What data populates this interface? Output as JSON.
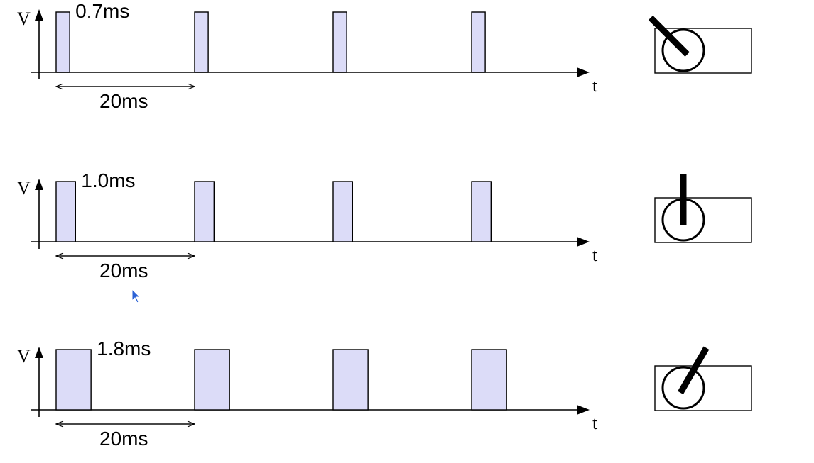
{
  "colors": {
    "pulse_fill": "#dcdcf8",
    "stroke": "#000000",
    "cursor": "#2b62d6"
  },
  "axis_labels": {
    "voltage": "V",
    "time": "t"
  },
  "rows": [
    {
      "pulse_width_label": "0.7ms",
      "period_label": "20ms",
      "pulse_width_ms": 0.7,
      "period_ms": 20,
      "pulse_count": 4,
      "servo_angle_deg": -45
    },
    {
      "pulse_width_label": "1.0ms",
      "period_label": "20ms",
      "pulse_width_ms": 1.0,
      "period_ms": 20,
      "pulse_count": 4,
      "servo_angle_deg": 0
    },
    {
      "pulse_width_label": "1.8ms",
      "period_label": "20ms",
      "pulse_width_ms": 1.8,
      "period_ms": 20,
      "pulse_count": 4,
      "servo_angle_deg": 30
    }
  ]
}
